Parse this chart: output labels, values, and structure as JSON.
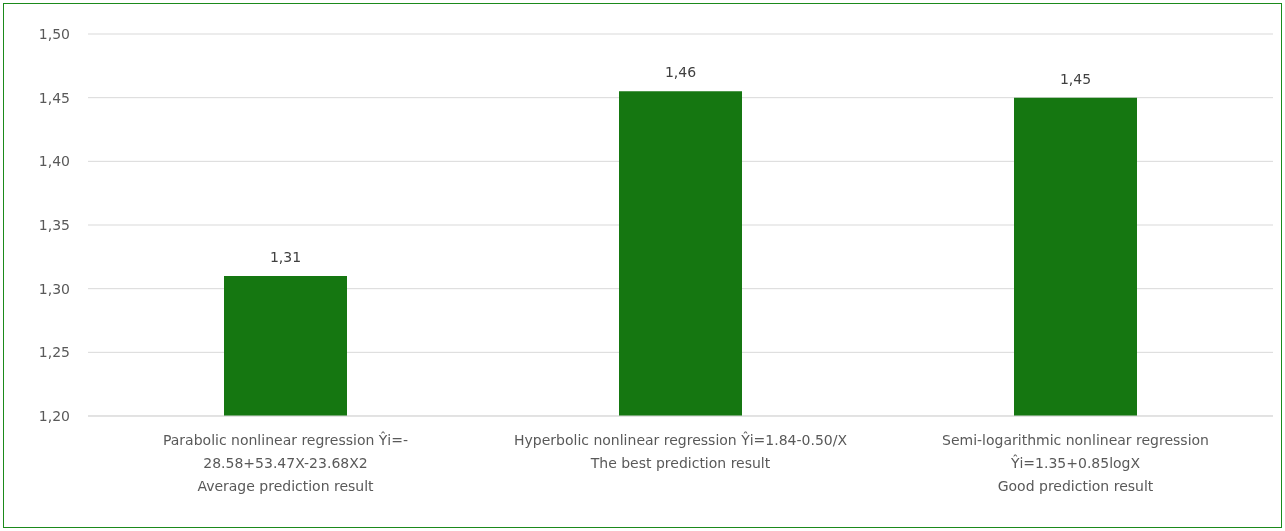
{
  "chart_data": {
    "type": "bar",
    "categories": [
      "Parabolic nonlinear regression Ŷi=-28.58+53.47X-23.68X2\nAverage prediction result",
      "Hyperbolic nonlinear regression Ŷi=1.84-0.50/X\nThe best prediction result",
      "Semi-logarithmic nonlinear regression Ŷi=1.35+0.85logX\nGood prediction result"
    ],
    "values": [
      1.31,
      1.455,
      1.45
    ],
    "value_labels": [
      "1,31",
      "1,46",
      "1,45"
    ],
    "color": "#157711",
    "ylim": [
      1.2,
      1.5
    ],
    "yticks": [
      {
        "value": 1.2,
        "label": "1,20"
      },
      {
        "value": 1.25,
        "label": "1,25"
      },
      {
        "value": 1.3,
        "label": "1,30"
      },
      {
        "value": 1.35,
        "label": "1,35"
      },
      {
        "value": 1.4,
        "label": "1,40"
      },
      {
        "value": 1.45,
        "label": "1,45"
      },
      {
        "value": 1.5,
        "label": "1,50"
      }
    ],
    "grid": "y"
  }
}
